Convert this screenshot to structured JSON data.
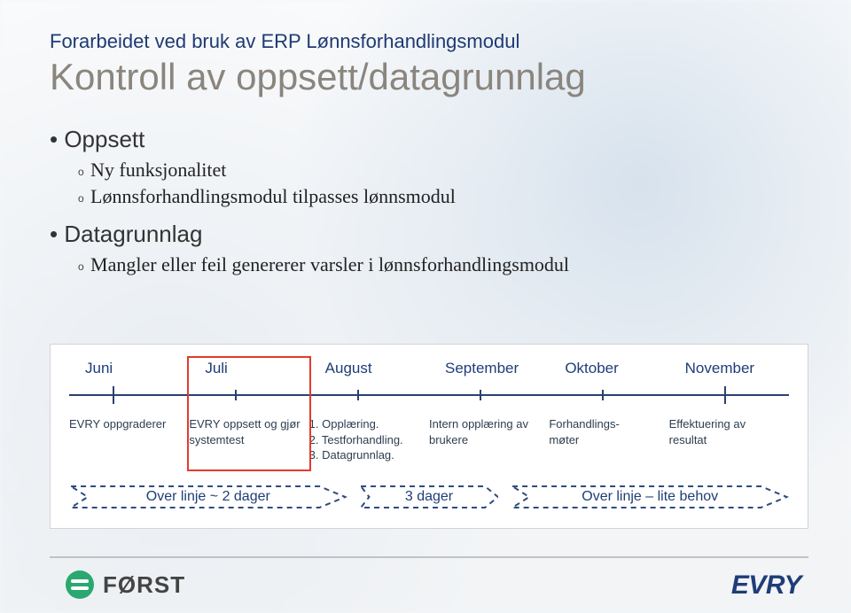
{
  "pretitle": "Forarbeidet ved bruk av ERP Lønnsforhandlingsmodul",
  "title": "Kontroll av oppsett/datagrunnlag",
  "bullets": {
    "a_head": "Oppsett",
    "a1": "Ny funksjonalitet",
    "a2": "Lønnsforhandlingsmodul tilpasses lønnsmodul",
    "b_head": "Datagrunnlag",
    "b1": "Mangler eller feil genererer varsler i lønnsforhandlingsmodul"
  },
  "timeline": {
    "months": [
      "Juni",
      "Juli",
      "August",
      "September",
      "Oktober",
      "November"
    ],
    "tick_positions_pct": [
      6,
      23,
      40,
      57,
      74,
      91
    ],
    "highlight_index": 1,
    "highlight_color": "#e23b2e",
    "axis_color": "#2b4170",
    "tasks": [
      "EVRY oppgraderer",
      "EVRY oppsett og gjør systemtest",
      "1. Opplæring.\n2. Testforhandling.\n3. Datagrunnlag.",
      "Intern opplæring av brukere",
      "Forhandlings-\nmøter",
      "Effektuering av resultat"
    ],
    "arrows": [
      {
        "label": "Over linje ~ 2 dager",
        "weight": 2
      },
      {
        "label": "3 dager",
        "weight": 1
      },
      {
        "label": "Over linje – lite behov",
        "weight": 2
      }
    ]
  },
  "footer": {
    "forst": "FØRST",
    "evry": "EVRY"
  },
  "colors": {
    "pretitle": "#1e3a73",
    "title": "#8a857d",
    "month_text": "#1f3d78",
    "task_text": "#2c3e50",
    "dash": "#2f4a80",
    "forst_green": "#2aa86f"
  }
}
